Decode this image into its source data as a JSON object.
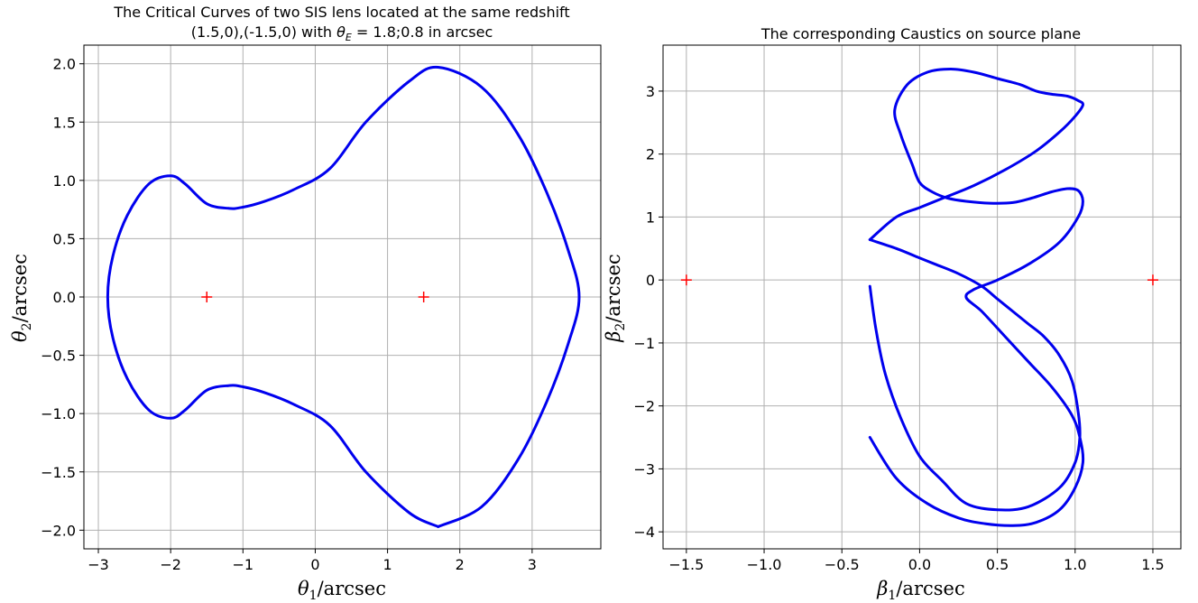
{
  "chart_data": [
    {
      "type": "scatter",
      "title_line1": "The Critical Curves of two SIS lens located at the same redshift",
      "title_line2_prefix": "(1.5,0),(-1.5,0) with ",
      "title_line2_theta": "θ",
      "title_line2_sub": "E",
      "title_line2_suffix": " = 1.8;0.8 in arcsec",
      "xlabel_symbol": "θ",
      "xlabel_sub": "1",
      "xlabel_unit": "/arcsec",
      "ylabel_symbol": "θ",
      "ylabel_sub": "2",
      "ylabel_unit": "/arcsec",
      "xlim": [
        -3.2,
        3.95
      ],
      "ylim": [
        -2.16,
        2.16
      ],
      "x_ticks": [
        -3,
        -2,
        -1,
        0,
        1,
        2,
        3
      ],
      "x_tick_labels": [
        "−3",
        "−2",
        "−1",
        "0",
        "1",
        "2",
        "3"
      ],
      "y_ticks": [
        -2.0,
        -1.5,
        -1.0,
        -0.5,
        0.0,
        0.5,
        1.0,
        1.5,
        2.0
      ],
      "y_tick_labels": [
        "−2.0",
        "−1.5",
        "−1.0",
        "−0.5",
        "0.0",
        "0.5",
        "1.0",
        "1.5",
        "2.0"
      ],
      "grid": true,
      "lenses": {
        "x": [
          -1.5,
          1.5
        ],
        "y": [
          0,
          0
        ],
        "marker": "+",
        "color": "#ff0000"
      },
      "curve_color": "#0000ee",
      "series": [
        {
          "x": [
            1.7,
            2.3,
            2.8,
            3.2,
            3.5,
            3.65,
            3.5,
            3.2,
            2.8,
            2.3,
            1.7,
            1.3,
            0.7,
            0.2,
            -0.3,
            -0.7,
            -1.0,
            -1.2,
            -1.5,
            -1.8,
            -2.0,
            -2.3,
            -2.6,
            -2.8,
            -2.87,
            -2.8,
            -2.6,
            -2.3,
            -2.0,
            -1.8,
            -1.5,
            -1.2,
            -1.0,
            -0.7,
            -0.3,
            0.2,
            0.7,
            1.3,
            1.7
          ],
          "y": [
            -1.97,
            -1.8,
            -1.4,
            -0.9,
            -0.4,
            0.0,
            0.4,
            0.9,
            1.4,
            1.8,
            1.97,
            1.85,
            1.5,
            1.1,
            0.92,
            0.82,
            0.77,
            0.76,
            0.8,
            0.97,
            1.04,
            0.97,
            0.7,
            0.35,
            0.0,
            -0.35,
            -0.7,
            -0.97,
            -1.04,
            -0.97,
            -0.8,
            -0.76,
            -0.77,
            -0.82,
            -0.92,
            -1.1,
            -1.5,
            -1.85,
            -1.97
          ]
        }
      ]
    },
    {
      "type": "scatter",
      "title_line1": "The corresponding Caustics on source plane",
      "xlabel_symbol": "β",
      "xlabel_sub": "1",
      "xlabel_unit": "/arcsec",
      "ylabel_symbol": "β",
      "ylabel_sub": "2",
      "ylabel_unit": "/arcsec",
      "xlim": [
        -1.65,
        1.68
      ],
      "ylim": [
        -4.27,
        3.73
      ],
      "x_ticks": [
        -1.5,
        -1.0,
        -0.5,
        0.0,
        0.5,
        1.0,
        1.5
      ],
      "x_tick_labels": [
        "−1.5",
        "−1.0",
        "−0.5",
        "0.0",
        "0.5",
        "1.0",
        "1.5"
      ],
      "y_ticks": [
        -4,
        -3,
        -2,
        -1,
        0,
        1,
        2,
        3
      ],
      "y_tick_labels": [
        "−4",
        "−3",
        "−2",
        "−1",
        "0",
        "1",
        "2",
        "3"
      ],
      "grid": true,
      "lenses": {
        "x": [
          -1.5,
          1.5
        ],
        "y": [
          0,
          0
        ],
        "marker": "+",
        "color": "#ff0000"
      },
      "curve_color": "#0000ee",
      "series": [
        {
          "x": [
            -0.32,
            -0.15,
            0.05,
            0.25,
            0.42,
            0.6,
            0.75,
            0.9,
            1.0,
            1.05,
            1.03,
            0.98,
            0.85,
            0.7,
            0.55,
            0.4,
            0.3,
            0.35,
            0.5,
            0.7,
            0.9,
            1.02,
            1.05,
            1.02,
            0.95,
            0.85,
            0.72,
            0.6,
            0.45,
            0.3,
            0.18,
            0.08,
            0.0,
            -0.05,
            -0.12,
            -0.16,
            -0.08,
            0.05,
            0.2,
            0.35,
            0.5,
            0.65,
            0.75,
            0.85,
            0.95,
            1.02,
            1.05,
            1.0,
            0.9,
            0.75,
            0.55,
            0.35,
            0.15,
            0.0,
            -0.15,
            -0.32
          ],
          "y": [
            -2.5,
            -3.15,
            -3.55,
            -3.78,
            -3.87,
            -3.9,
            -3.85,
            -3.65,
            -3.3,
            -2.9,
            -2.5,
            -2.15,
            -1.7,
            -1.3,
            -0.9,
            -0.5,
            -0.28,
            -0.15,
            0.0,
            0.25,
            0.6,
            1.0,
            1.25,
            1.42,
            1.45,
            1.4,
            1.3,
            1.23,
            1.22,
            1.25,
            1.3,
            1.4,
            1.55,
            1.85,
            2.3,
            2.7,
            3.1,
            3.3,
            3.35,
            3.3,
            3.2,
            3.1,
            3.0,
            2.95,
            2.92,
            2.85,
            2.78,
            2.6,
            2.35,
            2.05,
            1.75,
            1.5,
            1.3,
            1.15,
            1.0,
            0.64
          ]
        },
        {
          "x": [
            -0.32,
            -0.15,
            0.0,
            0.1,
            0.25,
            0.4,
            0.5,
            0.6,
            0.7,
            0.8,
            0.9,
            0.98,
            1.02,
            1.03,
            1.0,
            0.9,
            0.7,
            0.5,
            0.3,
            0.15,
            0.0,
            -0.12,
            -0.22,
            -0.28,
            -0.32
          ],
          "y": [
            0.64,
            0.5,
            0.35,
            0.25,
            0.1,
            -0.1,
            -0.3,
            -0.5,
            -0.7,
            -0.9,
            -1.2,
            -1.6,
            -2.1,
            -2.5,
            -2.9,
            -3.3,
            -3.6,
            -3.65,
            -3.55,
            -3.2,
            -2.8,
            -2.2,
            -1.5,
            -0.8,
            -0.1
          ]
        }
      ]
    }
  ]
}
